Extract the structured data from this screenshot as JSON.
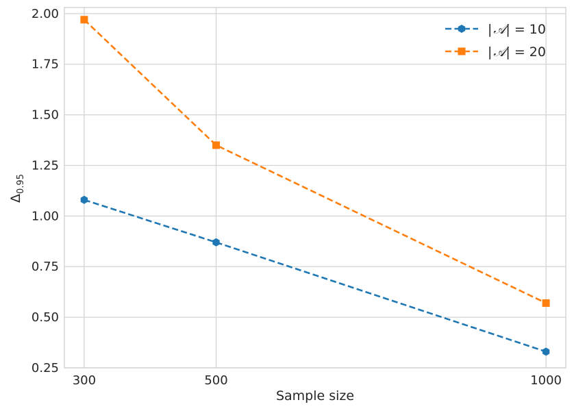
{
  "chart_data": {
    "type": "line",
    "title": "",
    "xlabel": "Sample size",
    "ylabel": {
      "main": "Δ",
      "sub": "0.95"
    },
    "x": [
      300,
      500,
      1000
    ],
    "x_ticks": [
      "300",
      "500",
      "1000"
    ],
    "y_ticks": [
      "0.25",
      "0.50",
      "0.75",
      "1.00",
      "1.25",
      "1.50",
      "1.75",
      "2.00"
    ],
    "xlim": [
      270,
      1030
    ],
    "ylim": [
      0.25,
      2.03
    ],
    "grid": true,
    "legend_position": "top-right",
    "series": [
      {
        "name": "|𝒜| = 10",
        "legend": {
          "pre": "|",
          "sym": "𝒜",
          "post": "| = 10"
        },
        "values": [
          1.08,
          0.87,
          0.33
        ],
        "color": "#1f77b4",
        "marker": "hexagon",
        "linestyle": "dashed"
      },
      {
        "name": "|𝒜| = 20",
        "legend": {
          "pre": "|",
          "sym": "𝒜",
          "post": "| = 20"
        },
        "values": [
          1.97,
          1.35,
          0.57
        ],
        "color": "#ff7f0e",
        "marker": "square",
        "linestyle": "dashed"
      }
    ]
  },
  "colors": {
    "grid": "#d4d4d4",
    "spine": "#cccccc",
    "background": "#ffffff"
  }
}
